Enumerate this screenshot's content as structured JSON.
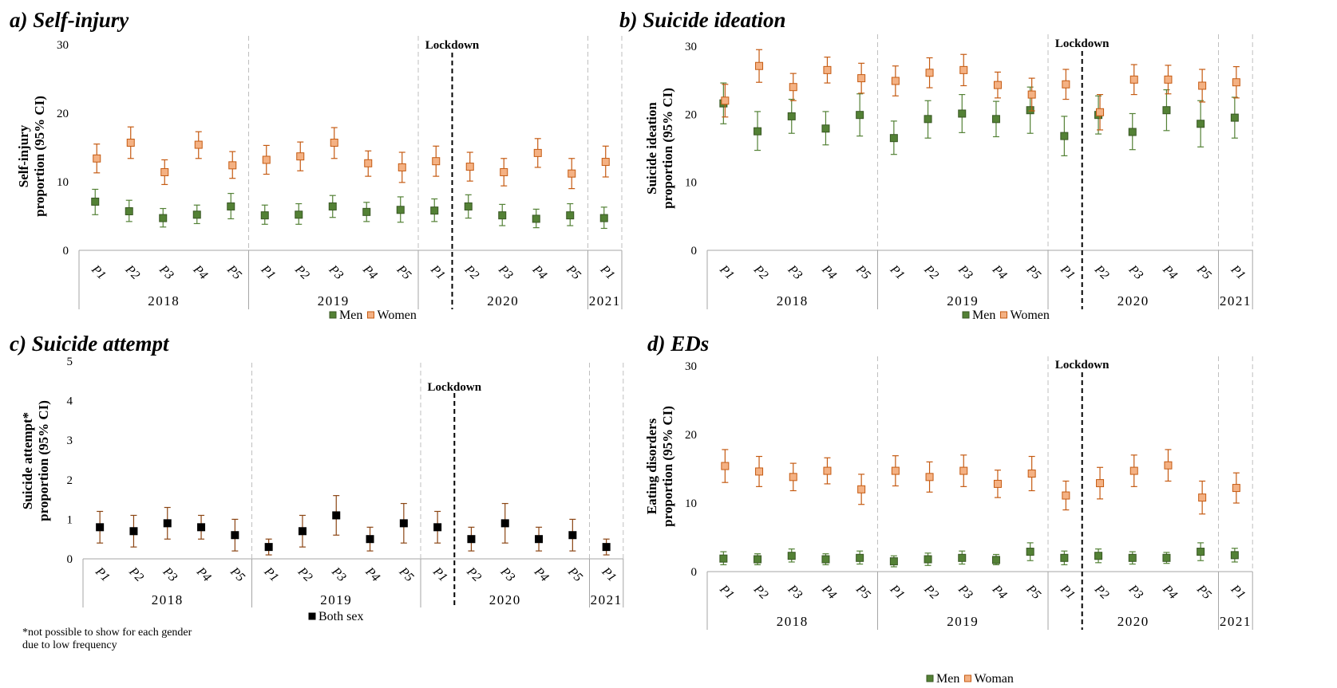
{
  "chart_data": [
    {
      "type": "scatter",
      "title": "a) Self-injury",
      "ylabel": [
        "Self-injury",
        "proportion (95% CI)"
      ],
      "ylim": [
        0,
        30
      ],
      "yticks": [
        0,
        10,
        20,
        30
      ],
      "categories": [
        "P1",
        "P2",
        "P3",
        "P4",
        "P5",
        "P1",
        "P2",
        "P3",
        "P4",
        "P5",
        "P1",
        "P2",
        "P3",
        "P4",
        "P5",
        "P1"
      ],
      "years": [
        {
          "label": "2018",
          "span": [
            0,
            4
          ]
        },
        {
          "label": "2019",
          "span": [
            5,
            9
          ]
        },
        {
          "label": "2020",
          "span": [
            10,
            14
          ]
        },
        {
          "label": "2021",
          "span": [
            15,
            15
          ]
        }
      ],
      "lockdown": {
        "label": "Lockdown",
        "after_index": 10
      },
      "series": [
        {
          "name": "Men",
          "color": "#538135",
          "marker": "filled-square",
          "values": [
            7.1,
            5.7,
            4.7,
            5.2,
            6.4,
            5.1,
            5.2,
            6.4,
            5.6,
            5.9,
            5.8,
            6.4,
            5.1,
            4.6,
            5.1,
            4.7
          ],
          "lower": [
            5.2,
            4.2,
            3.4,
            3.9,
            4.6,
            3.8,
            3.8,
            4.8,
            4.2,
            4.1,
            4.2,
            4.7,
            3.6,
            3.3,
            3.6,
            3.2
          ],
          "upper": [
            8.9,
            7.3,
            6.1,
            6.6,
            8.3,
            6.6,
            6.8,
            8.0,
            7.0,
            7.8,
            7.5,
            8.1,
            6.7,
            6.0,
            6.8,
            6.3
          ]
        },
        {
          "name": "Women",
          "color": "#F4B183",
          "edge": "#C55A11",
          "marker": "filled-square",
          "values": [
            13.4,
            15.7,
            11.4,
            15.4,
            12.4,
            13.2,
            13.7,
            15.7,
            12.7,
            12.1,
            13.0,
            12.2,
            11.4,
            14.2,
            11.2,
            12.9
          ],
          "lower": [
            11.3,
            13.4,
            9.6,
            13.4,
            10.5,
            11.1,
            11.6,
            13.4,
            10.8,
            9.9,
            10.8,
            10.1,
            9.4,
            12.1,
            9.0,
            10.7
          ],
          "upper": [
            15.5,
            18.0,
            13.2,
            17.3,
            14.4,
            15.3,
            15.8,
            17.9,
            14.5,
            14.3,
            15.2,
            14.3,
            13.4,
            16.3,
            13.4,
            15.2
          ]
        }
      ]
    },
    {
      "type": "scatter",
      "title": "b) Suicide ideation",
      "ylabel": [
        "Suicide ideation",
        "proportion (95% CI)"
      ],
      "ylim": [
        0,
        30
      ],
      "yticks": [
        0,
        10,
        20,
        30
      ],
      "categories": [
        "P1",
        "P2",
        "P3",
        "P4",
        "P5",
        "P1",
        "P2",
        "P3",
        "P4",
        "P5",
        "P1",
        "P2",
        "P3",
        "P4",
        "P5",
        "P1"
      ],
      "years": [
        {
          "label": "2018",
          "span": [
            0,
            4
          ]
        },
        {
          "label": "2019",
          "span": [
            5,
            9
          ]
        },
        {
          "label": "2020",
          "span": [
            10,
            14
          ]
        },
        {
          "label": "2021",
          "span": [
            15,
            15
          ]
        }
      ],
      "lockdown": {
        "label": "Lockdown",
        "after_index": 10
      },
      "series": [
        {
          "name": "Men",
          "color": "#538135",
          "marker": "filled-square",
          "values": [
            21.6,
            17.5,
            19.7,
            17.9,
            19.9,
            16.5,
            19.3,
            20.1,
            19.3,
            20.6,
            16.8,
            19.9,
            17.4,
            20.6,
            18.6,
            19.5
          ],
          "lower": [
            18.6,
            14.7,
            17.2,
            15.5,
            16.8,
            14.1,
            16.5,
            17.3,
            16.7,
            17.2,
            13.9,
            17.1,
            14.8,
            17.6,
            15.2,
            16.5
          ],
          "upper": [
            24.6,
            20.4,
            22.2,
            20.4,
            23.0,
            19.0,
            22.0,
            22.9,
            21.9,
            24.0,
            19.7,
            22.7,
            20.1,
            23.6,
            22.0,
            22.5
          ]
        },
        {
          "name": "Women",
          "color": "#F4B183",
          "edge": "#C55A11",
          "marker": "filled-square",
          "values": [
            22.0,
            27.1,
            24.0,
            26.5,
            25.3,
            24.9,
            26.1,
            26.5,
            24.3,
            22.9,
            24.4,
            20.3,
            25.1,
            25.1,
            24.2,
            24.7
          ],
          "lower": [
            19.6,
            24.7,
            22.0,
            24.6,
            23.1,
            22.7,
            23.9,
            24.2,
            22.4,
            20.5,
            22.2,
            17.7,
            22.9,
            23.0,
            21.8,
            22.4
          ],
          "upper": [
            24.4,
            29.5,
            26.0,
            28.4,
            27.5,
            27.1,
            28.3,
            28.8,
            26.2,
            25.3,
            26.6,
            22.9,
            27.3,
            27.2,
            26.6,
            27.0
          ]
        }
      ]
    },
    {
      "type": "scatter",
      "title": "c) Suicide attempt",
      "ylabel": [
        "Suicide attempt*",
        "proportion (95% CI)"
      ],
      "ylim": [
        0,
        5
      ],
      "yticks": [
        0,
        1,
        2,
        3,
        4,
        5
      ],
      "categories": [
        "P1",
        "P2",
        "P3",
        "P4",
        "P5",
        "P1",
        "P2",
        "P3",
        "P4",
        "P5",
        "P1",
        "P2",
        "P3",
        "P4",
        "P5",
        "P1"
      ],
      "years": [
        {
          "label": "2018",
          "span": [
            0,
            4
          ]
        },
        {
          "label": "2019",
          "span": [
            5,
            9
          ]
        },
        {
          "label": "2020",
          "span": [
            10,
            14
          ]
        },
        {
          "label": "2021",
          "span": [
            15,
            15
          ]
        }
      ],
      "lockdown": {
        "label": "Lockdown",
        "after_index": 10
      },
      "series": [
        {
          "name": "Both sex",
          "color": "#000000",
          "errcolor": "#8B4513",
          "marker": "filled-square",
          "values": [
            0.8,
            0.7,
            0.9,
            0.8,
            0.6,
            0.3,
            0.7,
            1.1,
            0.5,
            0.9,
            0.8,
            0.5,
            0.9,
            0.5,
            0.6,
            0.3
          ],
          "lower": [
            0.4,
            0.3,
            0.5,
            0.5,
            0.2,
            0.1,
            0.3,
            0.6,
            0.2,
            0.4,
            0.4,
            0.2,
            0.4,
            0.2,
            0.2,
            0.1
          ],
          "upper": [
            1.2,
            1.1,
            1.3,
            1.1,
            1.0,
            0.5,
            1.1,
            1.6,
            0.8,
            1.4,
            1.2,
            0.8,
            1.4,
            0.8,
            1.0,
            0.5
          ]
        }
      ],
      "footnote": [
        "*not possible to show for each gender",
        "due to low frequency"
      ]
    },
    {
      "type": "scatter",
      "title": "d) EDs",
      "ylabel": [
        "Eating disorders",
        "proportion (95% CI)"
      ],
      "ylim": [
        0,
        30
      ],
      "yticks": [
        0,
        10,
        20,
        30
      ],
      "categories": [
        "P1",
        "P2",
        "P3",
        "P4",
        "P5",
        "P1",
        "P2",
        "P3",
        "P4",
        "P5",
        "P1",
        "P2",
        "P3",
        "P4",
        "P5",
        "P1"
      ],
      "years": [
        {
          "label": "2018",
          "span": [
            0,
            4
          ]
        },
        {
          "label": "2019",
          "span": [
            5,
            9
          ]
        },
        {
          "label": "2020",
          "span": [
            10,
            14
          ]
        },
        {
          "label": "2021",
          "span": [
            15,
            15
          ]
        }
      ],
      "lockdown": {
        "label": "Lockdown",
        "after_index": 10
      },
      "series": [
        {
          "name": "Men",
          "color": "#538135",
          "marker": "filled-square",
          "values": [
            1.9,
            1.8,
            2.3,
            1.8,
            2.0,
            1.5,
            1.8,
            2.0,
            1.7,
            2.9,
            2.0,
            2.3,
            2.0,
            2.0,
            2.9,
            2.4
          ],
          "lower": [
            1.0,
            1.0,
            1.4,
            1.0,
            1.1,
            0.7,
            0.9,
            1.1,
            1.0,
            1.6,
            1.0,
            1.3,
            1.1,
            1.2,
            1.6,
            1.4
          ],
          "upper": [
            2.9,
            2.6,
            3.3,
            2.6,
            3.0,
            2.3,
            2.7,
            3.0,
            2.5,
            4.2,
            3.0,
            3.3,
            2.9,
            2.8,
            4.2,
            3.4
          ]
        },
        {
          "name": "Woman",
          "color": "#F4B183",
          "edge": "#C55A11",
          "marker": "filled-square",
          "values": [
            15.4,
            14.6,
            13.8,
            14.7,
            12.0,
            14.7,
            13.8,
            14.7,
            12.8,
            14.3,
            11.1,
            12.9,
            14.7,
            15.5,
            10.8,
            12.2
          ],
          "lower": [
            13.0,
            12.4,
            11.8,
            12.8,
            9.8,
            12.5,
            11.6,
            12.4,
            10.8,
            11.8,
            9.0,
            10.6,
            12.4,
            13.2,
            8.4,
            10.0
          ],
          "upper": [
            17.8,
            16.8,
            15.8,
            16.6,
            14.2,
            16.9,
            16.0,
            17.0,
            14.8,
            16.8,
            13.2,
            15.2,
            17.0,
            17.8,
            13.2,
            14.4
          ]
        }
      ]
    }
  ]
}
